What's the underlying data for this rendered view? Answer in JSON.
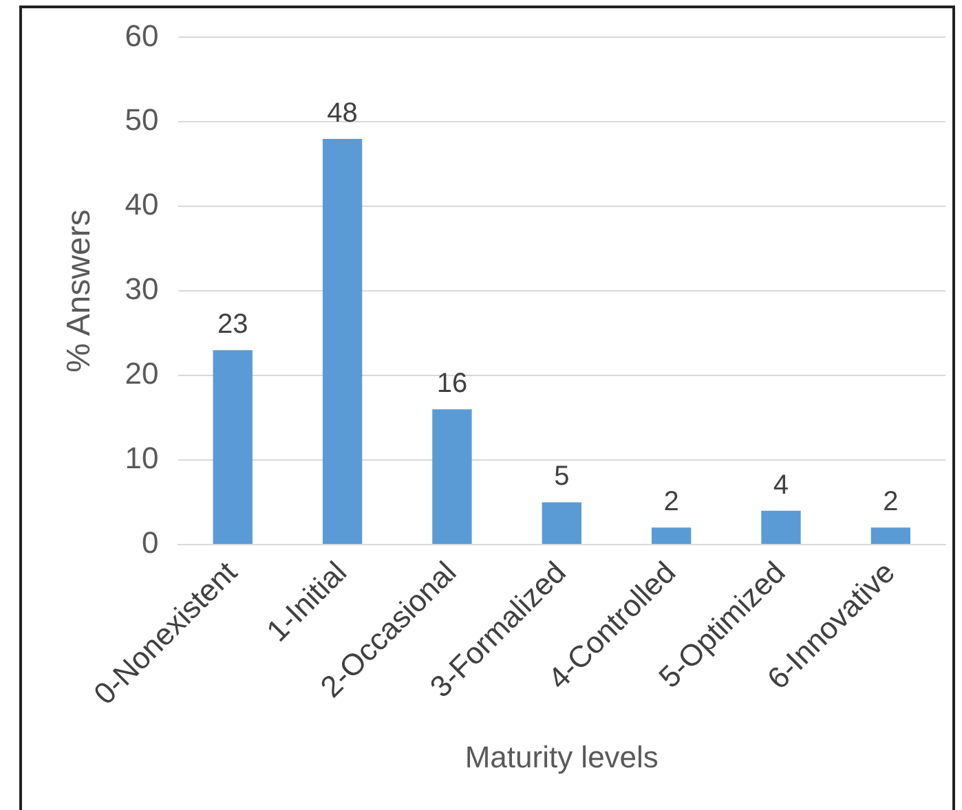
{
  "chart_data": {
    "type": "bar",
    "xlabel": "Maturity levels",
    "ylabel": "% Answers",
    "categories": [
      "0-Nonexistent",
      "1-Initial",
      "2-Occasional",
      "3-Formalized",
      "4-Controlled",
      "5-Optimized",
      "6-Innovative"
    ],
    "values": [
      23,
      48,
      16,
      5,
      2,
      4,
      2
    ],
    "color": "#5b9bd5",
    "ylim": [
      0,
      60
    ],
    "yticks": [
      0,
      10,
      20,
      30,
      40,
      50,
      60
    ],
    "grid": "y",
    "data_labels": true,
    "legend": false
  }
}
